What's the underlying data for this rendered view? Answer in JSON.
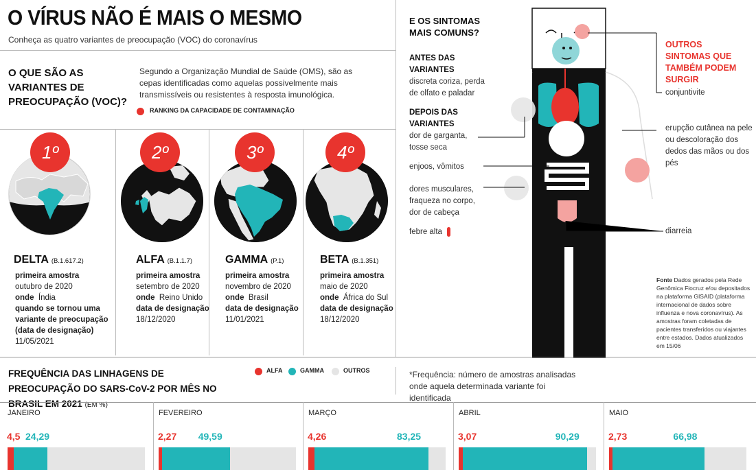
{
  "header": {
    "title": "O VÍRUS NÃO É MAIS O MESMO",
    "subtitle": "Conheça as quatro variantes de preocupação (VOC) do coronavírus"
  },
  "voc": {
    "heading": "O QUE SÃO AS VARIANTES DE PREOCUPAÇÃO (VOC)?",
    "text": "Segundo a Organização Mundial de Saúde (OMS), são as cepas identificadas como aquelas possivelmente mais transmissíveis ou resistentes à resposta imunológica.",
    "legend_ranking": "RANKING DA CAPACIDADE DE CONTAMINAÇÃO",
    "ranking_color": "#e8342e"
  },
  "variants": [
    {
      "rank": "1º",
      "name": "DELTA",
      "code": "(B.1.617.2)",
      "l1": "primeira amostra",
      "v1": "outubro de 2020",
      "l2": "onde",
      "v2": "Índia",
      "l3": "quando se tornou uma variante de preocupação (data de designação)",
      "v3": "11/05/2021"
    },
    {
      "rank": "2º",
      "name": "ALFA",
      "code": "(B.1.1.7)",
      "l1": "primeira amostra",
      "v1": "setembro de 2020",
      "l2": "onde",
      "v2": "Reino Unido",
      "l3": "data de designação",
      "v3": "18/12/2020"
    },
    {
      "rank": "3º",
      "name": "GAMMA",
      "code": "(P.1)",
      "l1": "primeira amostra",
      "v1": "novembro de 2020",
      "l2": "onde",
      "v2": "Brasil",
      "l3": "data de designação",
      "v3": "11/01/2021"
    },
    {
      "rank": "4º",
      "name": "BETA",
      "code": "(B.1.351)",
      "l1": "primeira amostra",
      "v1": "maio de 2020",
      "l2": "onde",
      "v2": "África do Sul",
      "l3": "data de designação",
      "v3": "18/12/2020"
    }
  ],
  "symptoms": {
    "title": "E OS SINTOMAS MAIS COMUNS?",
    "before_heading": "ANTES DAS VARIANTES",
    "before_text": "discreta coriza, perda de olfato e paladar",
    "after_heading": "DEPOIS DAS VARIANTES",
    "after_1": "dor de garganta, tosse seca",
    "after_2": "enjoos, vômitos",
    "after_3": "dores musculares, fraqueza no corpo, dor de cabeça",
    "after_4": "febre alta",
    "other_heading": "OUTROS SINTOMAS QUE TAMBÉM PODEM SURGIR",
    "other_1": "conjuntivite",
    "other_2": "erupção cutânea na pele ou descoloração dos dedos das mãos ou dos pés",
    "other_3": "diarreia"
  },
  "source": {
    "label": "Fonte",
    "text": "Dados gerados pela Rede Genômica Fiocruz e/ou depositados na plataforma GISAID (plataforma internacional de dados sobre influenza e nova coronavírus). As amostras foram coletadas de pacientes transferidos ou viajantes entre estados. Dados atualizados em 15/06"
  },
  "chart_data": {
    "type": "bar",
    "title": "FREQUÊNCIA DAS LINHAGENS DE PREOCUPAÇÃO DO SARS-CoV-2 POR MÊS NO BRASIL EM 2021",
    "unit": "(EM %)",
    "note": "*Frequência: número de amostras analisadas onde aquela determinada variante foi identificada",
    "categories": [
      "JANEIRO",
      "FEVEREIRO",
      "MARÇO",
      "ABRIL",
      "MAIO"
    ],
    "series": [
      {
        "name": "ALFA",
        "color": "#e8342e",
        "values": [
          4.5,
          2.27,
          4.26,
          3.07,
          2.73
        ],
        "labels": [
          "4,5",
          "2,27",
          "4,26",
          "3,07",
          "2,73"
        ]
      },
      {
        "name": "GAMMA",
        "color": "#22b5b8",
        "values": [
          24.29,
          49.59,
          83.25,
          90.29,
          66.98
        ],
        "labels": [
          "24,29",
          "49,59",
          "83,25",
          "90,29",
          "66,98"
        ]
      },
      {
        "name": "OUTROS",
        "color": "#e5e5e5"
      }
    ],
    "ylim": [
      0,
      100
    ],
    "orientation": "horizontal-stacked"
  }
}
